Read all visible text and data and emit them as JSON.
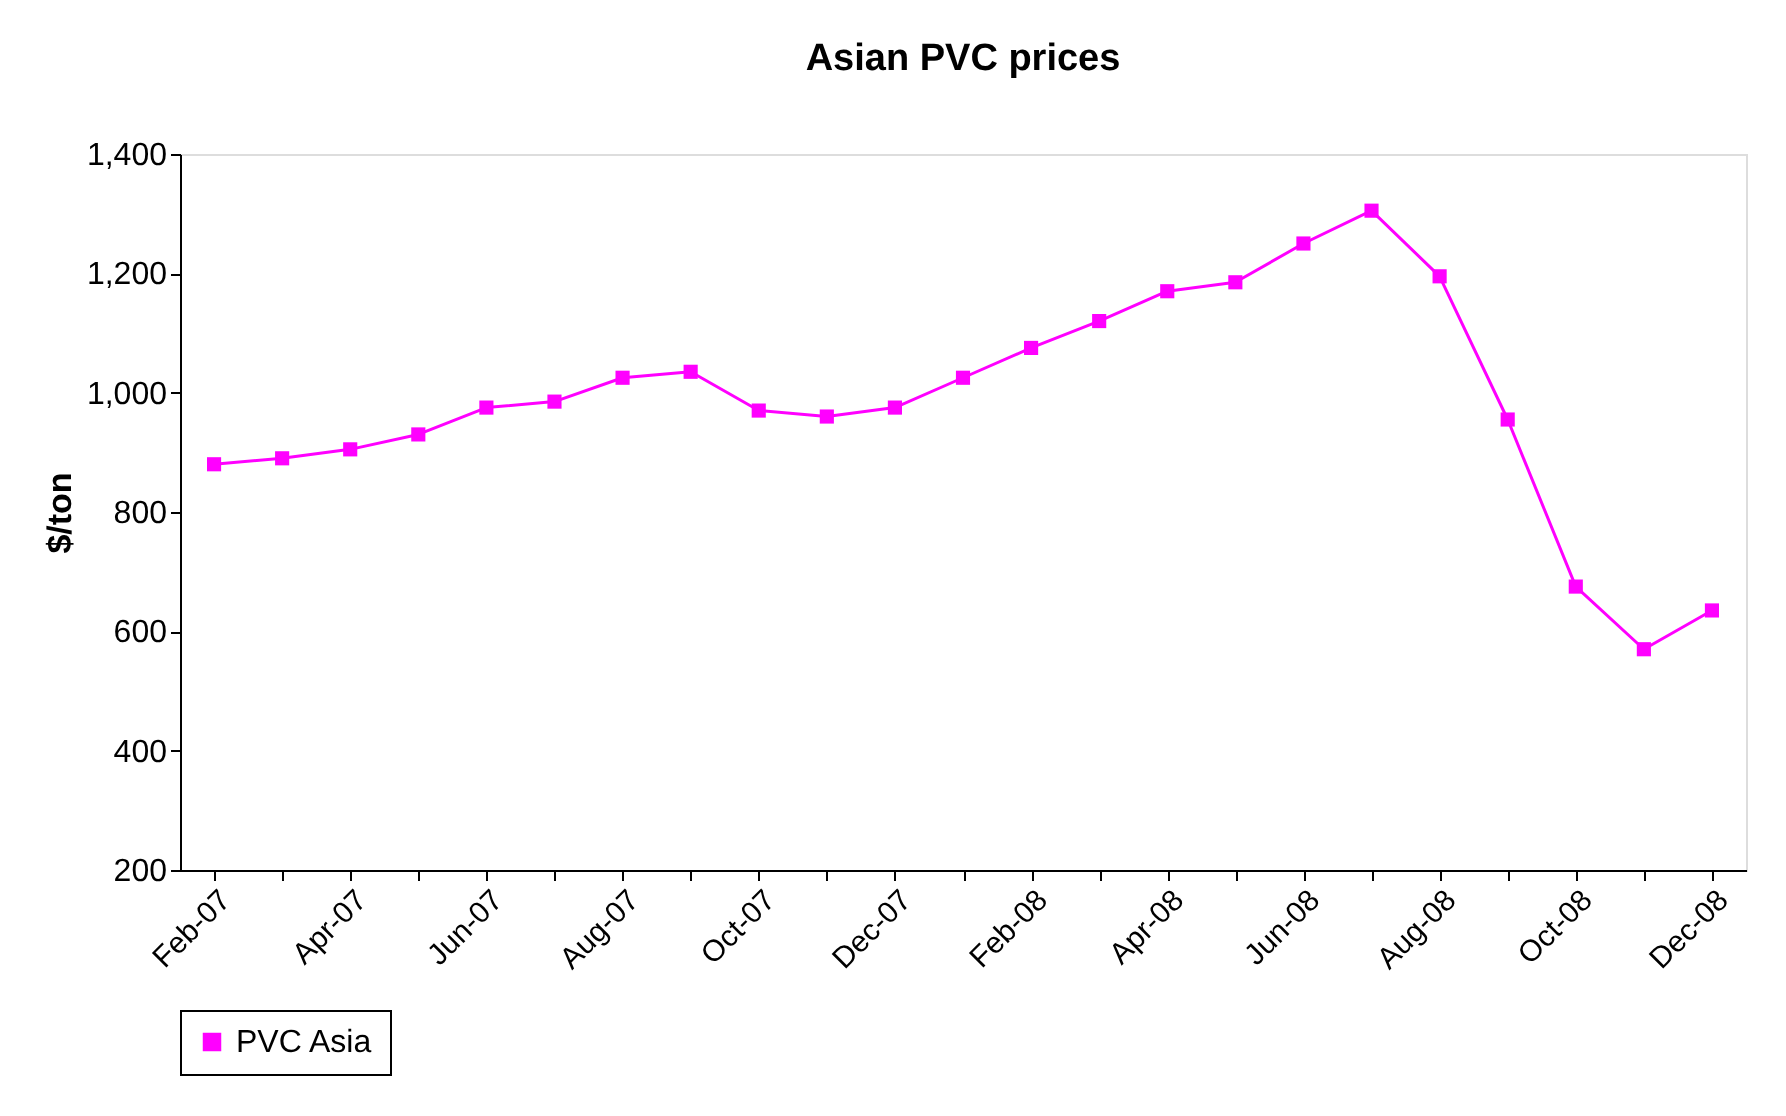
{
  "chart_data": {
    "type": "line",
    "title": "Asian PVC prices",
    "ylabel": "$/ton",
    "categories": [
      "Feb-07",
      null,
      "Apr-07",
      null,
      "Jun-07",
      null,
      "Aug-07",
      null,
      "Oct-07",
      null,
      "Dec-07",
      null,
      "Feb-08",
      null,
      "Apr-08",
      null,
      "Jun-08",
      null,
      "Aug-08",
      null,
      "Oct-08",
      null,
      "Dec-08"
    ],
    "series": [
      {
        "name": "PVC Asia",
        "color": "#ff00ff",
        "values": [
          880,
          890,
          905,
          930,
          975,
          985,
          1025,
          1035,
          970,
          960,
          975,
          1025,
          1075,
          1120,
          1170,
          1185,
          1250,
          1305,
          1195,
          955,
          675,
          570,
          635
        ]
      }
    ],
    "ylim": [
      200,
      1400
    ],
    "yticks": [
      {
        "value": 200,
        "label": "200"
      },
      {
        "value": 400,
        "label": "400"
      },
      {
        "value": 600,
        "label": "600"
      },
      {
        "value": 800,
        "label": "800"
      },
      {
        "value": 1000,
        "label": "1,000"
      },
      {
        "value": 1200,
        "label": "1,200"
      },
      {
        "value": 1400,
        "label": "1,400"
      }
    ],
    "grid": false,
    "legend": "bottom",
    "marker": "square",
    "line_style": "solid"
  }
}
